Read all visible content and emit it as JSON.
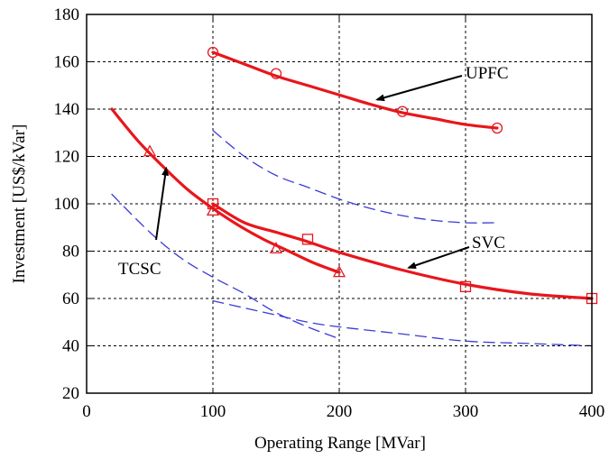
{
  "chart_data": {
    "type": "line",
    "xlabel": "Operating Range [MVar]",
    "ylabel": "Investment [US$/kVar]",
    "xlim": [
      0,
      400
    ],
    "ylim": [
      20,
      180
    ],
    "xticks": [
      0,
      100,
      200,
      300,
      400
    ],
    "yticks": [
      20,
      40,
      60,
      80,
      100,
      120,
      140,
      160,
      180
    ],
    "grid": true,
    "series": [
      {
        "name": "UPFC",
        "style": "solid",
        "color": "#e8161b",
        "marker": "circle",
        "x": [
          100,
          125,
          150,
          175,
          200,
          225,
          250,
          275,
          300,
          325
        ],
        "y": [
          164,
          159,
          154,
          150,
          146,
          142,
          138.5,
          136,
          133.5,
          132
        ],
        "marker_points": [
          [
            100,
            164
          ],
          [
            150,
            155
          ],
          [
            250,
            139
          ],
          [
            325,
            132
          ]
        ]
      },
      {
        "name": "TCSC",
        "style": "solid",
        "color": "#e8161b",
        "marker": "triangle",
        "x": [
          20,
          40,
          60,
          80,
          100,
          120,
          140,
          160,
          180,
          200
        ],
        "y": [
          140,
          127,
          116,
          106,
          98,
          91,
          85,
          80,
          75,
          71
        ],
        "marker_points": [
          [
            50,
            122
          ],
          [
            100,
            97
          ],
          [
            150,
            81
          ],
          [
            200,
            71
          ]
        ]
      },
      {
        "name": "SVC",
        "style": "solid",
        "color": "#e8161b",
        "marker": "square",
        "x": [
          100,
          125,
          150,
          175,
          200,
          250,
          300,
          350,
          400
        ],
        "y": [
          100,
          92,
          88,
          84,
          79.5,
          72,
          66,
          62,
          60
        ],
        "marker_points": [
          [
            100,
            100
          ],
          [
            175,
            85
          ],
          [
            300,
            65
          ],
          [
            400,
            60
          ]
        ]
      },
      {
        "style": "dashed",
        "color": "#3b3bd6",
        "x": [
          100,
          125,
          150,
          175,
          200,
          225,
          250,
          275,
          300,
          325
        ],
        "y": [
          131,
          120,
          112,
          107,
          102,
          98,
          95,
          93,
          92,
          92
        ]
      },
      {
        "style": "dashed",
        "color": "#3b3bd6",
        "x": [
          20,
          50,
          75,
          100,
          125,
          150,
          175,
          200
        ],
        "y": [
          104,
          88,
          77,
          69,
          62,
          54,
          48,
          43
        ]
      },
      {
        "style": "dashed",
        "color": "#3b3bd6",
        "x": [
          100,
          125,
          150,
          175,
          200,
          250,
          300,
          350,
          400
        ],
        "y": [
          59,
          56,
          53,
          50,
          48,
          45,
          42,
          41,
          40
        ]
      }
    ],
    "annotations": [
      {
        "text": "UPFC",
        "arrow_to": [
          230,
          144
        ]
      },
      {
        "text": "SVC",
        "arrow_to": [
          255,
          73
        ]
      },
      {
        "text": "TCSC",
        "arrow_to": [
          63,
          115
        ]
      }
    ]
  }
}
